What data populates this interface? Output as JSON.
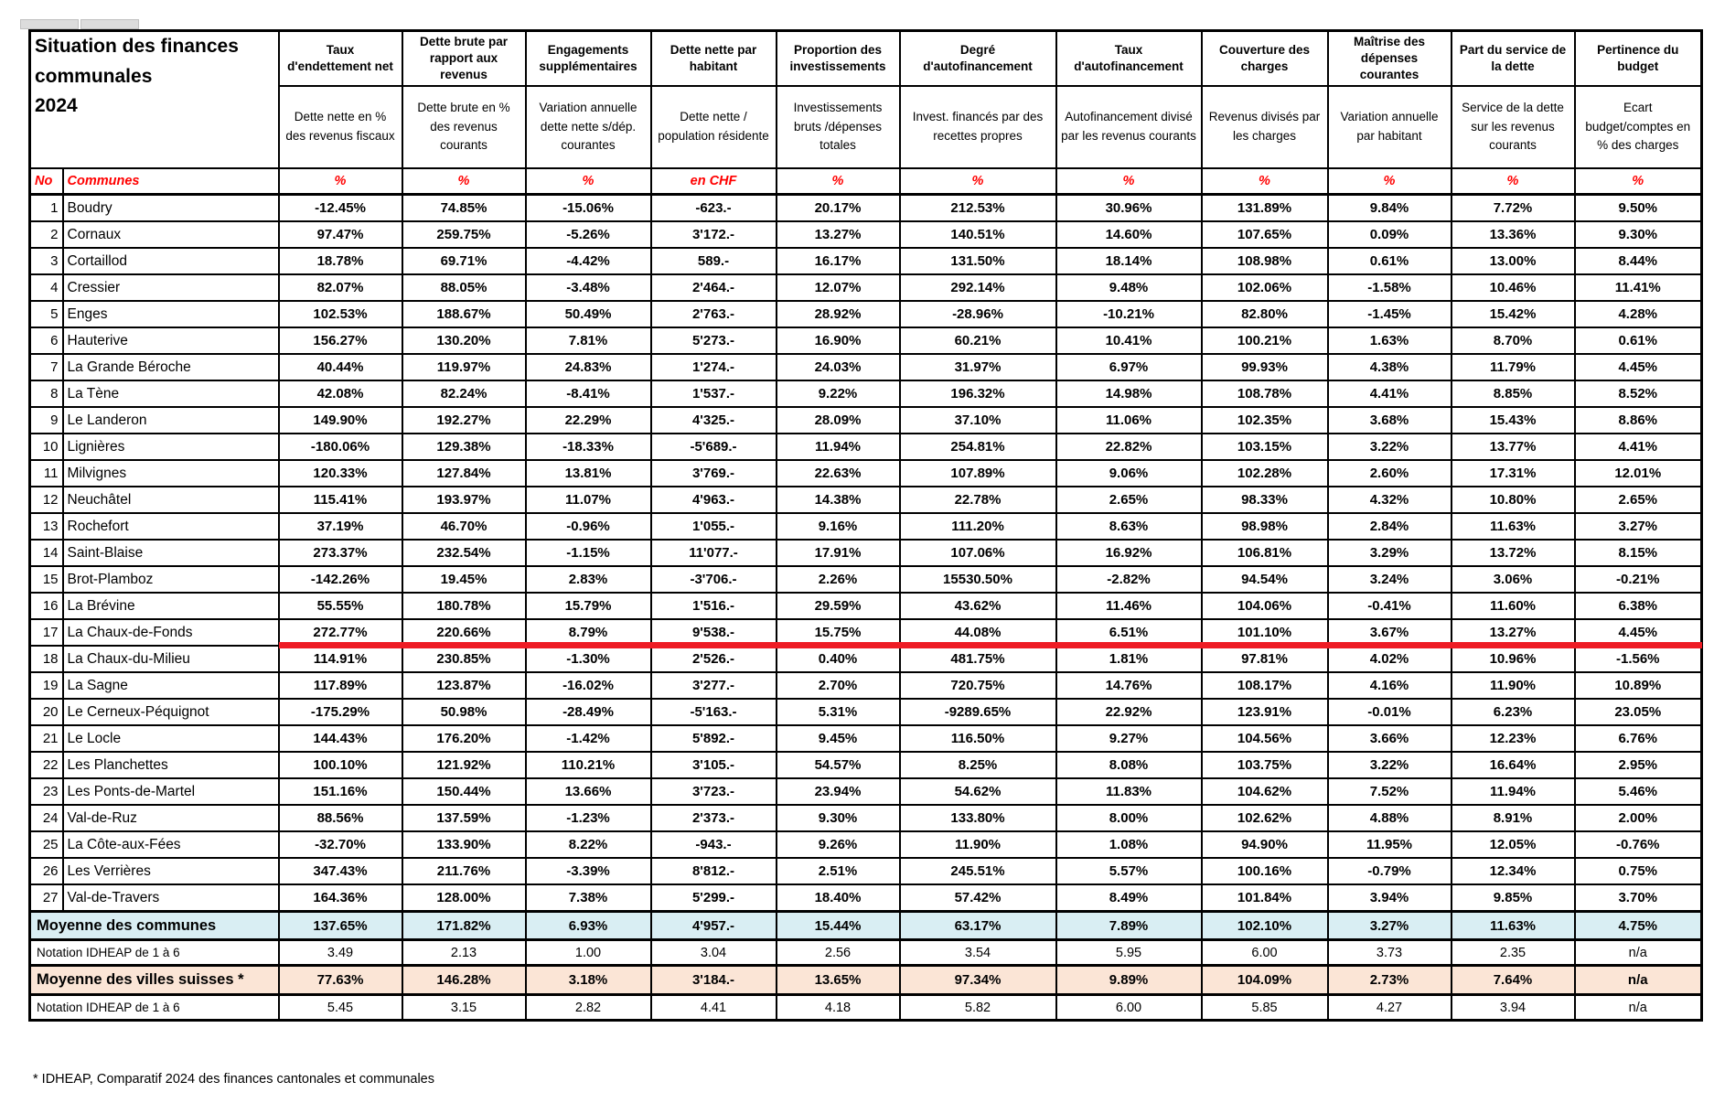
{
  "title": {
    "line1": "Situation des finances",
    "line2": "communales",
    "line3": "2024"
  },
  "corner": {
    "no_label": "No",
    "communes_label": "Communes"
  },
  "columns": [
    {
      "title": "Taux d'endettement net",
      "subtitle": "Dette nette en % des revenus fiscaux",
      "unit": "%"
    },
    {
      "title": "Dette brute par rapport aux revenus",
      "subtitle": "Dette brute en % des revenus courants",
      "unit": "%"
    },
    {
      "title": "Engagements supplémentaires",
      "subtitle": "Variation annuelle dette nette s/dép. courantes",
      "unit": "%"
    },
    {
      "title": "Dette nette par habitant",
      "subtitle": "Dette nette / population résidente",
      "unit": "en CHF"
    },
    {
      "title": "Proportion des investissements",
      "subtitle": "Investissements bruts /dépenses totales",
      "unit": "%"
    },
    {
      "title": "Degré d'autofinancement",
      "subtitle": "Invest. financés par des recettes propres",
      "unit": "%"
    },
    {
      "title": "Taux d'autofinancement",
      "subtitle": "Autofinancement divisé par les revenus courants",
      "unit": "%"
    },
    {
      "title": "Couverture des charges",
      "subtitle": "Revenus divisés par les charges",
      "unit": "%"
    },
    {
      "title": "Maîtrise des dépenses courantes",
      "subtitle": "Variation annuelle par habitant",
      "unit": "%"
    },
    {
      "title": "Part du service de la dette",
      "subtitle": "Service de la dette sur les revenus courants",
      "unit": "%"
    },
    {
      "title": "Pertinence du budget",
      "subtitle": "Ecart budget/comptes en % des charges",
      "unit": "%"
    }
  ],
  "rows": [
    {
      "no": "1",
      "name": "Boudry",
      "values": [
        "-12.45%",
        "74.85%",
        "-15.06%",
        "-623.-",
        "20.17%",
        "212.53%",
        "30.96%",
        "131.89%",
        "9.84%",
        "7.72%",
        "9.50%"
      ]
    },
    {
      "no": "2",
      "name": "Cornaux",
      "values": [
        "97.47%",
        "259.75%",
        "-5.26%",
        "3'172.-",
        "13.27%",
        "140.51%",
        "14.60%",
        "107.65%",
        "0.09%",
        "13.36%",
        "9.30%"
      ]
    },
    {
      "no": "3",
      "name": "Cortaillod",
      "values": [
        "18.78%",
        "69.71%",
        "-4.42%",
        "589.-",
        "16.17%",
        "131.50%",
        "18.14%",
        "108.98%",
        "0.61%",
        "13.00%",
        "8.44%"
      ]
    },
    {
      "no": "4",
      "name": "Cressier",
      "values": [
        "82.07%",
        "88.05%",
        "-3.48%",
        "2'464.-",
        "12.07%",
        "292.14%",
        "9.48%",
        "102.06%",
        "-1.58%",
        "10.46%",
        "11.41%"
      ]
    },
    {
      "no": "5",
      "name": "Enges",
      "values": [
        "102.53%",
        "188.67%",
        "50.49%",
        "2'763.-",
        "28.92%",
        "-28.96%",
        "-10.21%",
        "82.80%",
        "-1.45%",
        "15.42%",
        "4.28%"
      ]
    },
    {
      "no": "6",
      "name": "Hauterive",
      "values": [
        "156.27%",
        "130.20%",
        "7.81%",
        "5'273.-",
        "16.90%",
        "60.21%",
        "10.41%",
        "100.21%",
        "1.63%",
        "8.70%",
        "0.61%"
      ]
    },
    {
      "no": "7",
      "name": "La Grande Béroche",
      "values": [
        "40.44%",
        "119.97%",
        "24.83%",
        "1'274.-",
        "24.03%",
        "31.97%",
        "6.97%",
        "99.93%",
        "4.38%",
        "11.79%",
        "4.45%"
      ]
    },
    {
      "no": "8",
      "name": "La Tène",
      "values": [
        "42.08%",
        "82.24%",
        "-8.41%",
        "1'537.-",
        "9.22%",
        "196.32%",
        "14.98%",
        "108.78%",
        "4.41%",
        "8.85%",
        "8.52%"
      ]
    },
    {
      "no": "9",
      "name": "Le Landeron",
      "values": [
        "149.90%",
        "192.27%",
        "22.29%",
        "4'325.-",
        "28.09%",
        "37.10%",
        "11.06%",
        "102.35%",
        "3.68%",
        "15.43%",
        "8.86%"
      ]
    },
    {
      "no": "10",
      "name": "Lignières",
      "values": [
        "-180.06%",
        "129.38%",
        "-18.33%",
        "-5'689.-",
        "11.94%",
        "254.81%",
        "22.82%",
        "103.15%",
        "3.22%",
        "13.77%",
        "4.41%"
      ]
    },
    {
      "no": "11",
      "name": "Milvignes",
      "values": [
        "120.33%",
        "127.84%",
        "13.81%",
        "3'769.-",
        "22.63%",
        "107.89%",
        "9.06%",
        "102.28%",
        "2.60%",
        "17.31%",
        "12.01%"
      ]
    },
    {
      "no": "12",
      "name": "Neuchâtel",
      "values": [
        "115.41%",
        "193.97%",
        "11.07%",
        "4'963.-",
        "14.38%",
        "22.78%",
        "2.65%",
        "98.33%",
        "4.32%",
        "10.80%",
        "2.65%"
      ]
    },
    {
      "no": "13",
      "name": "Rochefort",
      "values": [
        "37.19%",
        "46.70%",
        "-0.96%",
        "1'055.-",
        "9.16%",
        "111.20%",
        "8.63%",
        "98.98%",
        "2.84%",
        "11.63%",
        "3.27%"
      ]
    },
    {
      "no": "14",
      "name": "Saint-Blaise",
      "values": [
        "273.37%",
        "232.54%",
        "-1.15%",
        "11'077.-",
        "17.91%",
        "107.06%",
        "16.92%",
        "106.81%",
        "3.29%",
        "13.72%",
        "8.15%"
      ]
    },
    {
      "no": "15",
      "name": "Brot-Plamboz",
      "values": [
        "-142.26%",
        "19.45%",
        "2.83%",
        "-3'706.-",
        "2.26%",
        "15530.50%",
        "-2.82%",
        "94.54%",
        "3.24%",
        "3.06%",
        "-0.21%"
      ]
    },
    {
      "no": "16",
      "name": "La Brévine",
      "values": [
        "55.55%",
        "180.78%",
        "15.79%",
        "1'516.-",
        "29.59%",
        "43.62%",
        "11.46%",
        "104.06%",
        "-0.41%",
        "11.60%",
        "6.38%"
      ]
    },
    {
      "no": "17",
      "name": "La Chaux-de-Fonds",
      "values": [
        "272.77%",
        "220.66%",
        "8.79%",
        "9'538.-",
        "15.75%",
        "44.08%",
        "6.51%",
        "101.10%",
        "3.67%",
        "13.27%",
        "4.45%"
      ]
    },
    {
      "no": "18",
      "name": "La Chaux-du-Milieu",
      "values": [
        "114.91%",
        "230.85%",
        "-1.30%",
        "2'526.-",
        "0.40%",
        "481.75%",
        "1.81%",
        "97.81%",
        "4.02%",
        "10.96%",
        "-1.56%"
      ]
    },
    {
      "no": "19",
      "name": "La Sagne",
      "values": [
        "117.89%",
        "123.87%",
        "-16.02%",
        "3'277.-",
        "2.70%",
        "720.75%",
        "14.76%",
        "108.17%",
        "4.16%",
        "11.90%",
        "10.89%"
      ]
    },
    {
      "no": "20",
      "name": "Le Cerneux-Péquignot",
      "values": [
        "-175.29%",
        "50.98%",
        "-28.49%",
        "-5'163.-",
        "5.31%",
        "-9289.65%",
        "22.92%",
        "123.91%",
        "-0.01%",
        "6.23%",
        "23.05%"
      ]
    },
    {
      "no": "21",
      "name": "Le Locle",
      "values": [
        "144.43%",
        "176.20%",
        "-1.42%",
        "5'892.-",
        "9.45%",
        "116.50%",
        "9.27%",
        "104.56%",
        "3.66%",
        "12.23%",
        "6.76%"
      ]
    },
    {
      "no": "22",
      "name": "Les Planchettes",
      "values": [
        "100.10%",
        "121.92%",
        "110.21%",
        "3'105.-",
        "54.57%",
        "8.25%",
        "8.08%",
        "103.75%",
        "3.22%",
        "16.64%",
        "2.95%"
      ]
    },
    {
      "no": "23",
      "name": "Les Ponts-de-Martel",
      "values": [
        "151.16%",
        "150.44%",
        "13.66%",
        "3'723.-",
        "23.94%",
        "54.62%",
        "11.83%",
        "104.62%",
        "7.52%",
        "11.94%",
        "5.46%"
      ]
    },
    {
      "no": "24",
      "name": "Val-de-Ruz",
      "values": [
        "88.56%",
        "137.59%",
        "-1.23%",
        "2'373.-",
        "9.30%",
        "133.80%",
        "8.00%",
        "102.62%",
        "4.88%",
        "8.91%",
        "2.00%"
      ]
    },
    {
      "no": "25",
      "name": "La Côte-aux-Fées",
      "values": [
        "-32.70%",
        "133.90%",
        "8.22%",
        "-943.-",
        "9.26%",
        "11.90%",
        "1.08%",
        "94.90%",
        "11.95%",
        "12.05%",
        "-0.76%"
      ]
    },
    {
      "no": "26",
      "name": "Les Verrières",
      "values": [
        "347.43%",
        "211.76%",
        "-3.39%",
        "8'812.-",
        "2.51%",
        "245.51%",
        "5.57%",
        "100.16%",
        "-0.79%",
        "12.34%",
        "0.75%"
      ]
    },
    {
      "no": "27",
      "name": "Val-de-Travers",
      "values": [
        "164.36%",
        "128.00%",
        "7.38%",
        "5'299.-",
        "18.40%",
        "57.42%",
        "8.49%",
        "101.84%",
        "3.94%",
        "9.85%",
        "3.70%"
      ]
    }
  ],
  "highlight": {
    "row_no": "17",
    "color": "#ee1c25"
  },
  "summary_rows": [
    {
      "label": "Moyenne des communes",
      "type": "avg-blue",
      "values": [
        "137.65%",
        "171.82%",
        "6.93%",
        "4'957.-",
        "15.44%",
        "63.17%",
        "7.89%",
        "102.10%",
        "3.27%",
        "11.63%",
        "4.75%"
      ]
    },
    {
      "label": "Notation IDHEAP de 1 à 6",
      "type": "notation",
      "values": [
        "3.49",
        "2.13",
        "1.00",
        "3.04",
        "2.56",
        "3.54",
        "5.95",
        "6.00",
        "3.73",
        "2.35",
        "n/a"
      ]
    },
    {
      "label": "Moyenne des villes suisses *",
      "type": "avg-orange",
      "values": [
        "77.63%",
        "146.28%",
        "3.18%",
        "3'184.-",
        "13.65%",
        "97.34%",
        "9.89%",
        "104.09%",
        "2.73%",
        "7.64%",
        "n/a"
      ]
    },
    {
      "label": "Notation IDHEAP de 1 à 6",
      "type": "notation",
      "values": [
        "5.45",
        "3.15",
        "2.82",
        "4.41",
        "4.18",
        "5.82",
        "6.00",
        "5.85",
        "4.27",
        "3.94",
        "n/a"
      ]
    }
  ],
  "footnote": "* IDHEAP, Comparatif 2024 des finances cantonales et communales",
  "colors": {
    "row_label_bg": "#d9eef3",
    "swiss_avg_bg": "#fbe5d6",
    "unit_text_red": "#ff0000",
    "highlight_line": "#ee1c25"
  }
}
